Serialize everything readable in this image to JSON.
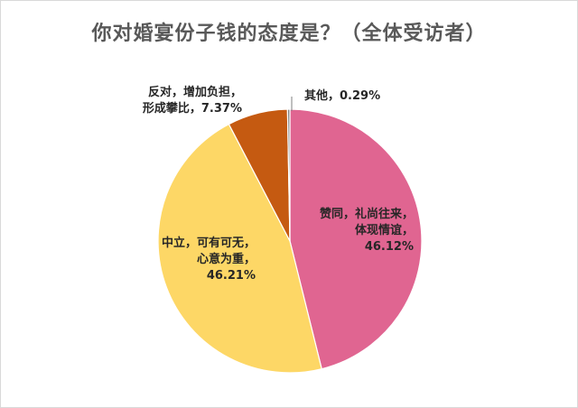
{
  "chart_data": {
    "type": "pie",
    "title": "你对婚宴份子钱的态度是？（全体受访者）",
    "slices": [
      {
        "name": "赞同，礼尚往来，体现情谊",
        "value": 46.12,
        "color": "#e06591",
        "label_lines": [
          "赞同，礼尚往来，",
          "体现情谊，",
          "46.12%"
        ]
      },
      {
        "name": "中立，可有可无，心意为重",
        "value": 46.21,
        "color": "#fdd766",
        "label_lines": [
          "中立，可有可无，",
          "心意为重，",
          "46.21%"
        ]
      },
      {
        "name": "反对，增加负担，形成攀比",
        "value": 7.37,
        "color": "#c55a11",
        "label_lines": [
          "反对，增加负担，",
          "形成攀比，7.37%"
        ]
      },
      {
        "name": "其他",
        "value": 0.29,
        "color": "#7f7f7f",
        "label_lines": [
          "其他，0.29%"
        ]
      }
    ]
  }
}
